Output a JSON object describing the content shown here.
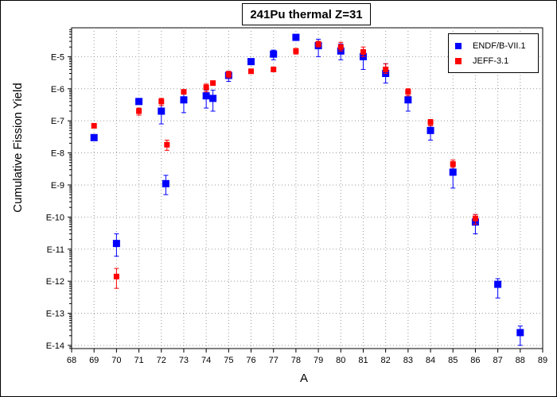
{
  "chart_data": {
    "type": "scatter",
    "title": "241Pu thermal Z=31",
    "xlabel": "A",
    "ylabel": "Cumulative Fission Yield",
    "xlim": [
      68,
      89
    ],
    "ylim_exp": [
      -14.1,
      -4.1
    ],
    "yscale": "log",
    "grid": true,
    "legend_position": "top-right",
    "x_ticks": [
      "68",
      "69",
      "70",
      "71",
      "72",
      "73",
      "74",
      "75",
      "76",
      "77",
      "78",
      "79",
      "80",
      "81",
      "82",
      "83",
      "84",
      "85",
      "86",
      "87",
      "88",
      "89"
    ],
    "y_ticks": [
      "E-5",
      "E-6",
      "E-7",
      "E-8",
      "E-9",
      "E-10",
      "E-11",
      "E-12",
      "E-13",
      "E-14"
    ],
    "series": [
      {
        "name": "ENDF/B-VII.1",
        "color": "#0000ff",
        "points": [
          {
            "a": 69,
            "yield": "3e-8",
            "err_low": "3e-8",
            "err_high": "3e-8"
          },
          {
            "a": 70,
            "yield": "1.5e-11",
            "err_low": "6e-12",
            "err_high": "3e-11"
          },
          {
            "a": 71,
            "yield": "4e-7",
            "err_low": "4e-7",
            "err_high": "4e-7"
          },
          {
            "a": 72,
            "yield": "2e-7",
            "err_low": "8e-8",
            "err_high": "4e-7"
          },
          {
            "a": 72.2,
            "yield": "1.1e-9",
            "err_low": "5e-10",
            "err_high": "2e-9"
          },
          {
            "a": 73,
            "yield": "4.5e-7",
            "err_low": "1.8e-7",
            "err_high": "7e-7"
          },
          {
            "a": 74,
            "yield": "6e-7",
            "err_low": "2.5e-7",
            "err_high": "9e-7"
          },
          {
            "a": 74.3,
            "yield": "5e-7",
            "err_low": "2e-7",
            "err_high": "9e-7"
          },
          {
            "a": 75,
            "yield": "2.6e-6",
            "err_low": "1.7e-6",
            "err_high": "3.5e-6"
          },
          {
            "a": 76,
            "yield": "7e-6",
            "err_low": "7e-6",
            "err_high": "7e-6"
          },
          {
            "a": 77,
            "yield": "1.2e-5",
            "err_low": "8e-6",
            "err_high": "1.6e-5"
          },
          {
            "a": 78,
            "yield": "4e-5",
            "err_low": "4e-5",
            "err_high": "4e-5"
          },
          {
            "a": 79,
            "yield": "2.2e-5",
            "err_low": "1e-5",
            "err_high": "3.5e-5"
          },
          {
            "a": 80,
            "yield": "1.5e-5",
            "err_low": "8e-6",
            "err_high": "2.5e-5"
          },
          {
            "a": 81,
            "yield": "1e-5",
            "err_low": "4e-6",
            "err_high": "1.5e-5"
          },
          {
            "a": 82,
            "yield": "3e-6",
            "err_low": "1.5e-6",
            "err_high": "6e-6"
          },
          {
            "a": 83,
            "yield": "4.5e-7",
            "err_low": "2e-7",
            "err_high": "7e-7"
          },
          {
            "a": 84,
            "yield": "5e-8",
            "err_low": "2.5e-8",
            "err_high": "1e-7"
          },
          {
            "a": 85,
            "yield": "2.5e-9",
            "err_low": "8e-10",
            "err_high": "4e-9"
          },
          {
            "a": 86,
            "yield": "7e-11",
            "err_low": "3e-11",
            "err_high": "1.2e-10"
          },
          {
            "a": 87,
            "yield": "8e-13",
            "err_low": "3e-13",
            "err_high": "1.2e-12"
          },
          {
            "a": 88,
            "yield": "2.5e-14",
            "err_low": "1e-14",
            "err_high": "4e-14"
          }
        ]
      },
      {
        "name": "JEFF-3.1",
        "color": "#ff0000",
        "points": [
          {
            "a": 69,
            "yield": "7e-8",
            "err_low": "6e-8",
            "err_high": "8e-8"
          },
          {
            "a": 70,
            "yield": "1.4e-12",
            "err_low": "6e-13",
            "err_high": "2.5e-12"
          },
          {
            "a": 71,
            "yield": "2e-7",
            "err_low": "1.5e-7",
            "err_high": "2.5e-7"
          },
          {
            "a": 72,
            "yield": "4e-7",
            "err_low": "3e-7",
            "err_high": "5e-7"
          },
          {
            "a": 72.25,
            "yield": "1.8e-8",
            "err_low": "1.2e-8",
            "err_high": "2.5e-8"
          },
          {
            "a": 73,
            "yield": "8e-7",
            "err_low": "7e-7",
            "err_high": "9e-7"
          },
          {
            "a": 74,
            "yield": "1.1e-6",
            "err_low": "8e-7",
            "err_high": "1.4e-6"
          },
          {
            "a": 74.3,
            "yield": "1.5e-6",
            "err_low": "1.5e-6",
            "err_high": "1.5e-6"
          },
          {
            "a": 75,
            "yield": "2.8e-6",
            "err_low": "2.2e-6",
            "err_high": "3.5e-6"
          },
          {
            "a": 76,
            "yield": "3.5e-6",
            "err_low": "3e-6",
            "err_high": "4e-6"
          },
          {
            "a": 77,
            "yield": "4e-6",
            "err_low": "4e-6",
            "err_high": "4e-6"
          },
          {
            "a": 78,
            "yield": "1.5e-5",
            "err_low": "1.2e-5",
            "err_high": "1.8e-5"
          },
          {
            "a": 79,
            "yield": "2.5e-5",
            "err_low": "2e-5",
            "err_high": "3e-5"
          },
          {
            "a": 80,
            "yield": "2e-5",
            "err_low": "1.5e-5",
            "err_high": "2.8e-5"
          },
          {
            "a": 81,
            "yield": "1.4e-5",
            "err_low": "1e-5",
            "err_high": "2e-5"
          },
          {
            "a": 82,
            "yield": "4e-6",
            "err_low": "3e-6",
            "err_high": "6e-6"
          },
          {
            "a": 83,
            "yield": "8e-7",
            "err_low": "6e-7",
            "err_high": "1e-6"
          },
          {
            "a": 84,
            "yield": "9e-8",
            "err_low": "7e-8",
            "err_high": "1.1e-7"
          },
          {
            "a": 85,
            "yield": "4.5e-9",
            "err_low": "3.5e-9",
            "err_high": "6e-9"
          },
          {
            "a": 86,
            "yield": "9e-11",
            "err_low": "6e-11",
            "err_high": "1.2e-10"
          }
        ]
      }
    ]
  }
}
